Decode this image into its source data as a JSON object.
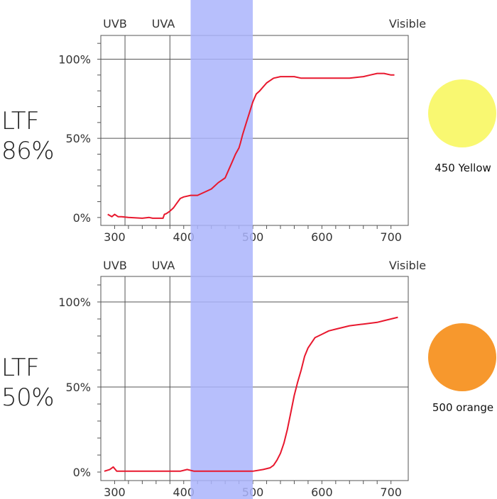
{
  "band": {
    "from": 410,
    "to": 500,
    "color": "#aab4fb"
  },
  "chart_data": [
    {
      "type": "line",
      "title": "",
      "xlabel": "",
      "ylabel": "",
      "xlim": [
        280,
        725
      ],
      "ylim": [
        -5,
        115
      ],
      "xticks": [
        "300",
        "400",
        "500",
        "600",
        "700"
      ],
      "yticks": [
        "0%",
        "50%",
        "100%"
      ],
      "region_labels": [
        "UVB",
        "UVA",
        "Visible"
      ],
      "region_dividers": [
        315,
        380
      ],
      "side_label": [
        "LTF",
        "86%"
      ],
      "swatch": {
        "label": "450 Yellow",
        "color": "#f9f871"
      },
      "line_color": "#e8182e",
      "series": [
        {
          "x": [
            290,
            296,
            300,
            305,
            310,
            320,
            340,
            350,
            355,
            360,
            370,
            372,
            375,
            380,
            385,
            390,
            395,
            400,
            410,
            420,
            430,
            440,
            450,
            460,
            465,
            470,
            475,
            480,
            482,
            485,
            490,
            495,
            500,
            505,
            510,
            520,
            530,
            540,
            550,
            560,
            570,
            580,
            590,
            600,
            610,
            620,
            630,
            640,
            660,
            670,
            680,
            690,
            700,
            705
          ],
          "y": [
            2,
            0.5,
            2,
            0.5,
            0.5,
            0,
            -0.5,
            0,
            -0.5,
            -0.5,
            -0.5,
            2,
            2.5,
            4,
            6,
            9,
            12,
            13,
            14,
            14,
            16,
            18,
            22,
            25,
            30,
            35,
            40,
            44,
            47,
            52,
            59,
            66,
            73,
            78,
            80,
            85,
            88,
            89,
            89,
            89,
            88,
            88,
            88,
            88,
            88,
            88,
            88,
            88,
            89,
            90,
            91,
            91,
            90,
            90
          ]
        }
      ]
    },
    {
      "type": "line",
      "title": "",
      "xlabel": "",
      "ylabel": "",
      "xlim": [
        280,
        725
      ],
      "ylim": [
        -5,
        115
      ],
      "xticks": [
        "300",
        "400",
        "500",
        "600",
        "700"
      ],
      "yticks": [
        "0%",
        "50%",
        "100%"
      ],
      "region_labels": [
        "UVB",
        "UVA",
        "Visible"
      ],
      "region_dividers": [
        315,
        380
      ],
      "side_label": [
        "LTF",
        "50%"
      ],
      "swatch": {
        "label": "500 orange",
        "color": "#f7982d"
      },
      "line_color": "#e8182e",
      "series": [
        {
          "x": [
            285,
            293,
            298,
            303,
            320,
            350,
            380,
            395,
            405,
            415,
            430,
            460,
            500,
            515,
            525,
            530,
            535,
            540,
            545,
            550,
            555,
            560,
            565,
            570,
            575,
            580,
            590,
            600,
            610,
            620,
            630,
            640,
            660,
            680,
            690,
            700,
            710
          ],
          "y": [
            0.5,
            1.5,
            3,
            0.5,
            0.5,
            0.5,
            0.5,
            0.5,
            1.5,
            0.5,
            0.5,
            0.5,
            0.5,
            1.5,
            2.5,
            4,
            7,
            11,
            17,
            25,
            35,
            45,
            53,
            60,
            68,
            73,
            79,
            81,
            83,
            84,
            85,
            86,
            87,
            88,
            89,
            90,
            91
          ]
        }
      ]
    }
  ]
}
